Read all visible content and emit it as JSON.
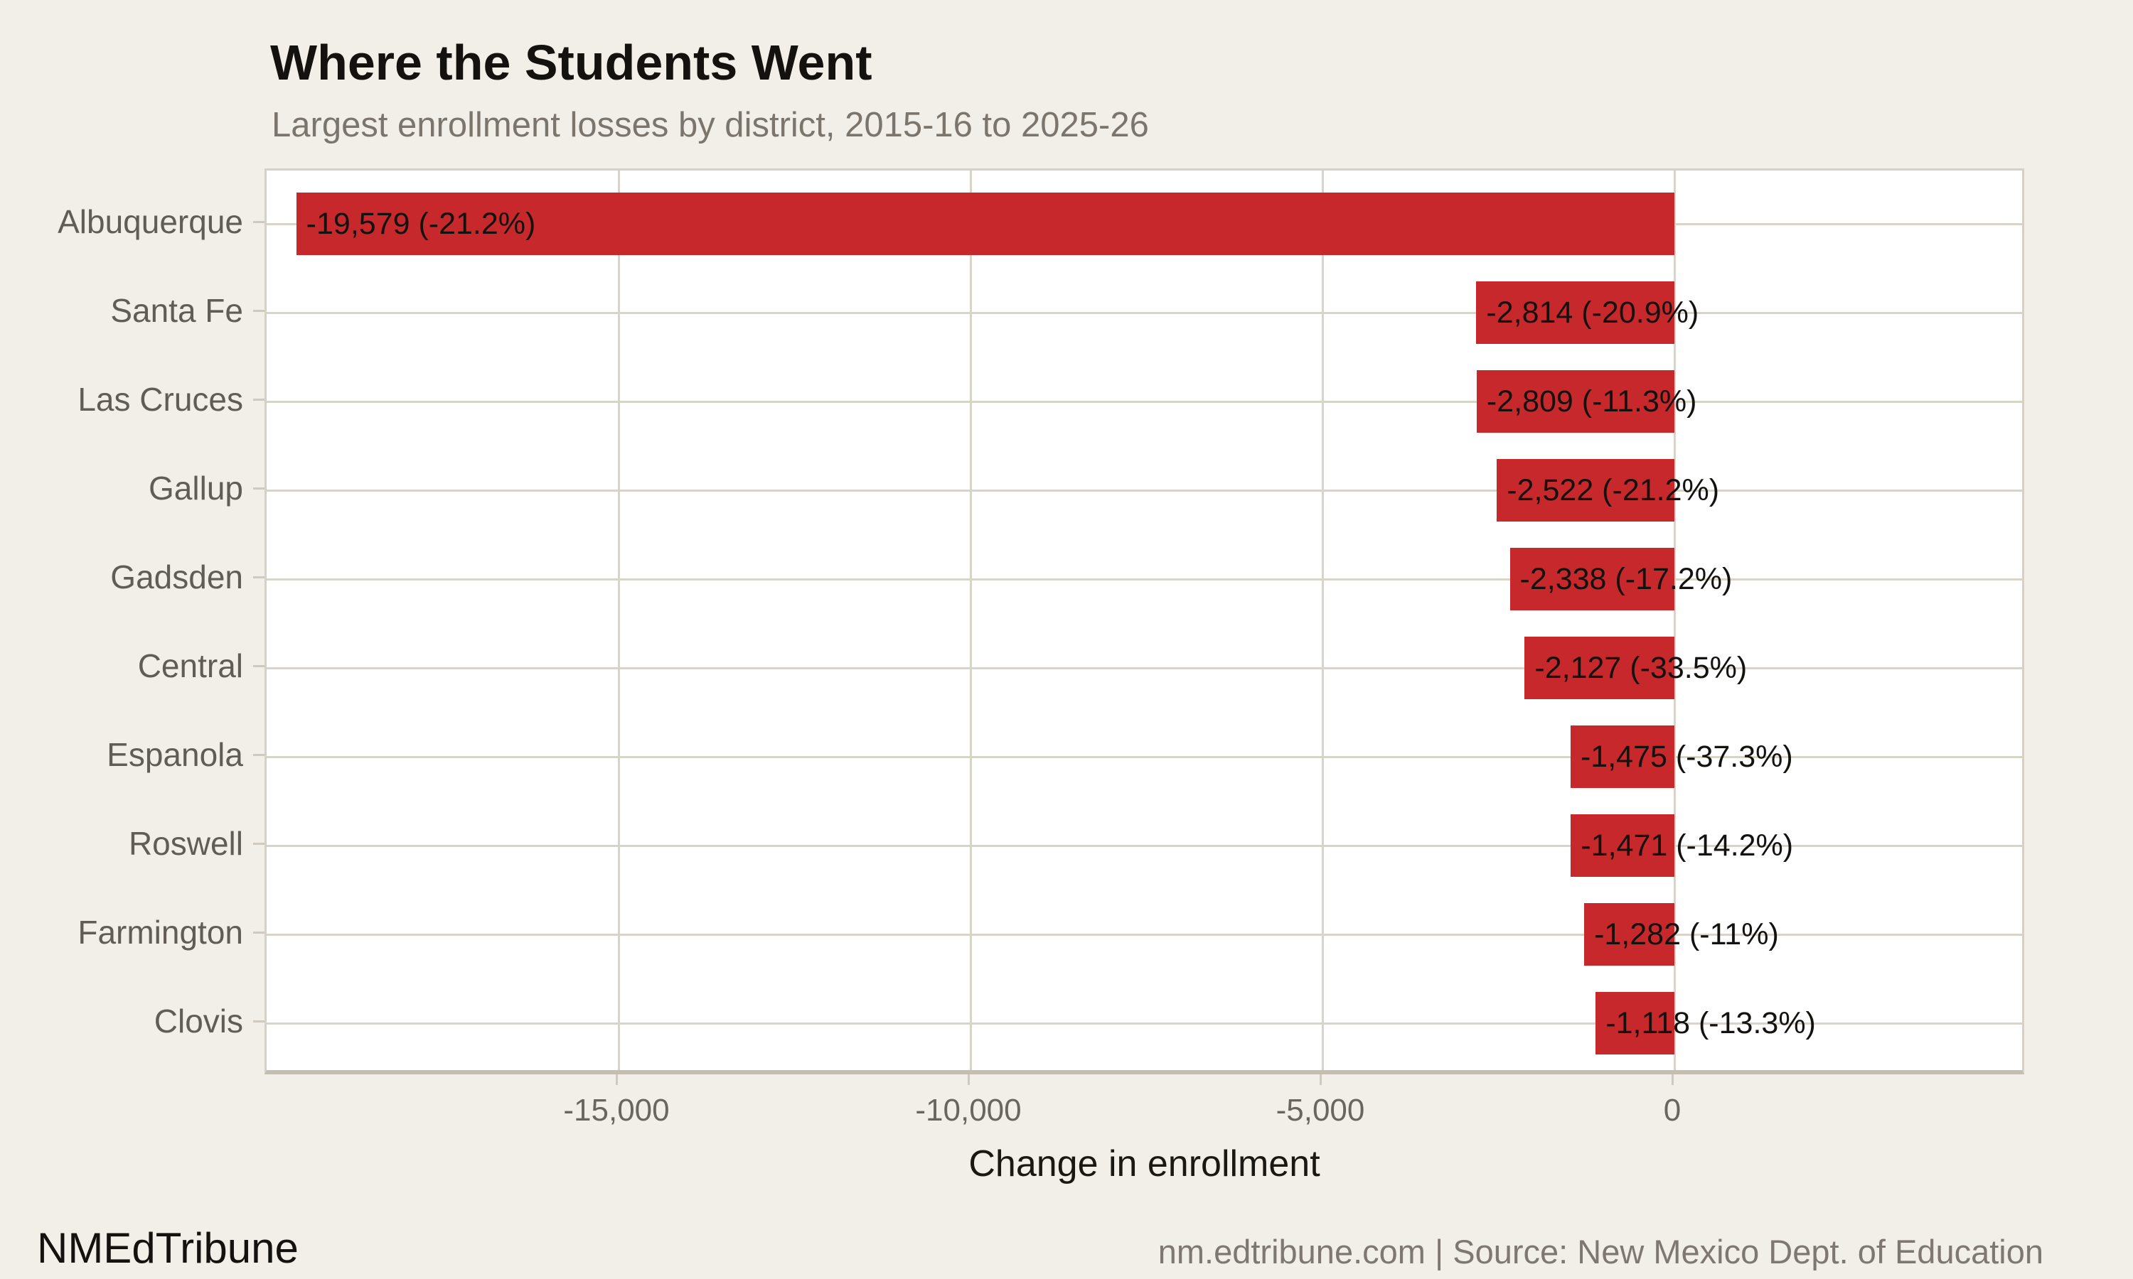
{
  "page": {
    "background_color": "#F2EEE8",
    "panel_color": "#FFFFFF",
    "grid_color": "#D9D4CA",
    "axis_line_color": "#C3BDB2",
    "bar_color": "#C6282B",
    "label_color": "#14120F",
    "muted_text_color": "#6B665D"
  },
  "header": {
    "title": "Where the Students Went",
    "subtitle": "Largest enrollment losses by district, 2015-16 to 2025-26"
  },
  "chart_data": {
    "type": "bar",
    "orientation": "horizontal",
    "title": "Where the Students Went",
    "subtitle": "Largest enrollment losses by district, 2015-16 to 2025-26",
    "xlabel": "Change in enrollment",
    "ylabel": "",
    "xlim": [
      -20000,
      5000
    ],
    "grid": true,
    "bar_color": "#C6282B",
    "bar_width_fraction": 0.7,
    "x_ticks": [
      {
        "value": -15000,
        "label": "-15,000"
      },
      {
        "value": -10000,
        "label": "-10,000"
      },
      {
        "value": -5000,
        "label": "-5,000"
      },
      {
        "value": 0,
        "label": "0"
      }
    ],
    "categories": [
      "Albuquerque",
      "Santa Fe",
      "Las Cruces",
      "Gallup",
      "Gadsden",
      "Central",
      "Espanola",
      "Roswell",
      "Farmington",
      "Clovis"
    ],
    "values": [
      -19579,
      -2814,
      -2809,
      -2522,
      -2338,
      -2127,
      -1475,
      -1471,
      -1282,
      -1118
    ],
    "pct_change": [
      -21.2,
      -20.9,
      -11.3,
      -21.2,
      -17.2,
      -33.5,
      -37.3,
      -14.2,
      -11,
      -13.3
    ],
    "bar_labels": [
      "-19,579 (-21.2%)",
      "-2,814 (-20.9%)",
      "-2,809 (-11.3%)",
      "-2,522 (-21.2%)",
      "-2,338 (-17.2%)",
      "-2,127 (-33.5%)",
      "-1,475 (-37.3%)",
      "-1,471 (-14.2%)",
      "-1,282 (-11%)",
      "-1,118 (-13.3%)"
    ],
    "legend": null
  },
  "footer": {
    "brand": "NMEdTribune",
    "source": "nm.edtribune.com | Source: New Mexico Dept. of Education"
  }
}
